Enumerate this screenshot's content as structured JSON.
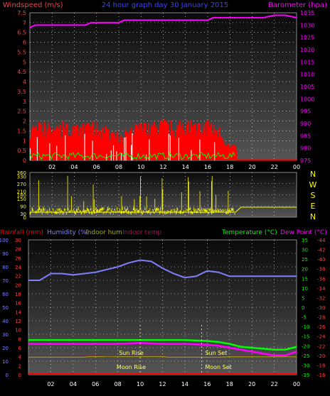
{
  "header": {
    "left_label": "Windspeed (m/s)",
    "center_label": "24 hour graph day  30 January 2015",
    "right_label": "Barometer (hpa)"
  },
  "colors": {
    "wind": "#ff0000",
    "gust": "#ffffff",
    "wind_avg": "#00ff00",
    "barometer": "#ff00ff",
    "direction": "#ffff00",
    "humidity": "#8080ff",
    "indoor_hum": "#aaaa00",
    "indoor_temp": "#a01060",
    "temperature": "#00ff00",
    "dewpoint": "#ff00ff",
    "rainfall": "#ff0000",
    "title": "#4040ff",
    "axis_text": "#ff4040"
  },
  "x_ticks": [
    "02",
    "04",
    "06",
    "08",
    "10",
    "12",
    "14",
    "16",
    "18",
    "20",
    "22",
    "00"
  ],
  "chart_data": [
    {
      "type": "bar",
      "title": "24 hour graph day  30 January 2015",
      "ylabel": "Windspeed (m/s)",
      "y2label": "Barometer (hpa)",
      "ylim": [
        0,
        7.5
      ],
      "y2lim": [
        975,
        1035
      ],
      "y_ticks": [
        "0",
        "0.5",
        "1",
        "1.5",
        "2",
        "2.5",
        "3",
        "3.5",
        "4",
        "4.5",
        "5",
        "5.5",
        "6",
        "6.5",
        "7",
        "7.5"
      ],
      "y2_ticks": [
        "975",
        "980",
        "985",
        "990",
        "995",
        "1000",
        "1005",
        "1010",
        "1015",
        "1020",
        "1025",
        "1030",
        "1035"
      ],
      "series": [
        {
          "name": "wind_max",
          "hours": [
            0,
            1,
            2,
            3,
            4,
            5,
            6,
            7,
            8,
            9,
            10,
            11,
            12,
            13,
            14,
            15,
            16,
            17,
            18
          ],
          "values": [
            2.0,
            2.0,
            2.0,
            2.0,
            1.8,
            2.0,
            2.0,
            1.8,
            1.5,
            1.8,
            2.0,
            2.0,
            2.2,
            2.0,
            2.2,
            2.0,
            2.2,
            1.8,
            0.8
          ]
        },
        {
          "name": "barometer",
          "hours": [
            0,
            0.5,
            1,
            3,
            5,
            5.5,
            8,
            8.5,
            13,
            15,
            16,
            16.5,
            17,
            21,
            22,
            23,
            24
          ],
          "values": [
            1029,
            1030,
            1030,
            1030,
            1030,
            1031,
            1031,
            1032,
            1032,
            1032,
            1032,
            1033,
            1033,
            1033,
            1034,
            1034,
            1033
          ]
        }
      ]
    },
    {
      "type": "line",
      "ylabel": "",
      "ylim": [
        0,
        360
      ],
      "y_ticks": [
        "0",
        "90",
        "180",
        "270",
        "360"
      ],
      "y_ticks_shown": [
        "0",
        "30",
        "90",
        "150",
        "180",
        "210",
        "270",
        "330",
        "360"
      ],
      "compass": [
        "N",
        "W",
        "S",
        "E",
        "N"
      ],
      "series": [
        {
          "name": "direction_baseline",
          "hours": [
            0,
            18.5,
            19,
            24
          ],
          "values": [
            40,
            40,
            80,
            80
          ]
        }
      ]
    },
    {
      "type": "line",
      "ylim": [
        0,
        100
      ],
      "y_ticks_humidity": [
        "0",
        "10",
        "20",
        "30",
        "40",
        "50",
        "60",
        "70",
        "80",
        "90",
        "100"
      ],
      "y_ticks_indoor": [
        "0",
        "2",
        "4",
        "6",
        "8",
        "10",
        "12",
        "14",
        "16",
        "18",
        "20",
        "22",
        "24",
        "26",
        "28",
        "30"
      ],
      "y_ticks_temp": [
        "-35",
        "-30",
        "-25",
        "-20",
        "-15",
        "-10",
        "-5",
        "0",
        "5",
        "10",
        "15",
        "20",
        "25",
        "30",
        "35"
      ],
      "y_ticks_dew": [
        "-16",
        "-18",
        "-20",
        "-22",
        "-24",
        "-26",
        "-28",
        "-30",
        "-32",
        "-34",
        "-36",
        "-38",
        "-40",
        "-42",
        "-44"
      ],
      "legend": {
        "rainfall": "Rainfall (mm)",
        "humidity": "Humidity (%)",
        "indoor_hum": "Indoor hum",
        "indoor_temp": "Indoor temp",
        "temperature": "Temperature (°C)",
        "dewpoint": "Dew Point (°C)"
      },
      "annotations": {
        "sun_rise": "Sun Rise",
        "sun_set": "Sun Set",
        "moon_rise": "Moon Rise",
        "moon_set": "Moon Set"
      },
      "series": [
        {
          "name": "humidity",
          "hours": [
            0,
            1,
            2,
            3,
            4,
            5,
            6,
            7,
            8,
            9,
            10,
            11,
            12,
            13,
            14,
            15,
            16,
            17,
            18,
            19,
            20,
            21,
            22,
            23,
            24
          ],
          "values": [
            70,
            70,
            75,
            75,
            74,
            75,
            76,
            78,
            80,
            83,
            85,
            84,
            79,
            75,
            72,
            73,
            77,
            76,
            73,
            73,
            73,
            73,
            73,
            73,
            73
          ]
        },
        {
          "name": "temperature",
          "hours": [
            0,
            2,
            4,
            6,
            8,
            10,
            12,
            14,
            16,
            17,
            18,
            19,
            20,
            21,
            22,
            23,
            24
          ],
          "values": [
            -17,
            -17,
            -17,
            -17,
            -17,
            -17,
            -17,
            -17,
            -17.5,
            -18,
            -19,
            -20.5,
            -21,
            -21.5,
            -22,
            -22,
            -20.5
          ]
        },
        {
          "name": "dewpoint",
          "hours": [
            0,
            2,
            4,
            6,
            8,
            10,
            12,
            14,
            16,
            17,
            18,
            19,
            20,
            21,
            22,
            23,
            24
          ],
          "values": [
            -19,
            -19,
            -19,
            -19,
            -19,
            -18.5,
            -19,
            -19,
            -19.5,
            -20,
            -21,
            -22,
            -23,
            -24,
            -25,
            -25,
            -23
          ]
        },
        {
          "name": "indoor_temp",
          "hours": [
            0,
            3,
            6,
            7,
            9,
            12,
            15,
            17,
            19,
            21,
            24
          ],
          "values": [
            14,
            14,
            14.2,
            13.8,
            14,
            14.1,
            14,
            13.8,
            14.2,
            14,
            14
          ]
        },
        {
          "name": "indoor_hum",
          "hours": [
            0,
            5,
            5.5,
            12,
            12.5,
            17,
            18,
            24
          ],
          "values": [
            13,
            13,
            13.5,
            13.5,
            13,
            13,
            13.3,
            13.3
          ]
        }
      ]
    }
  ]
}
